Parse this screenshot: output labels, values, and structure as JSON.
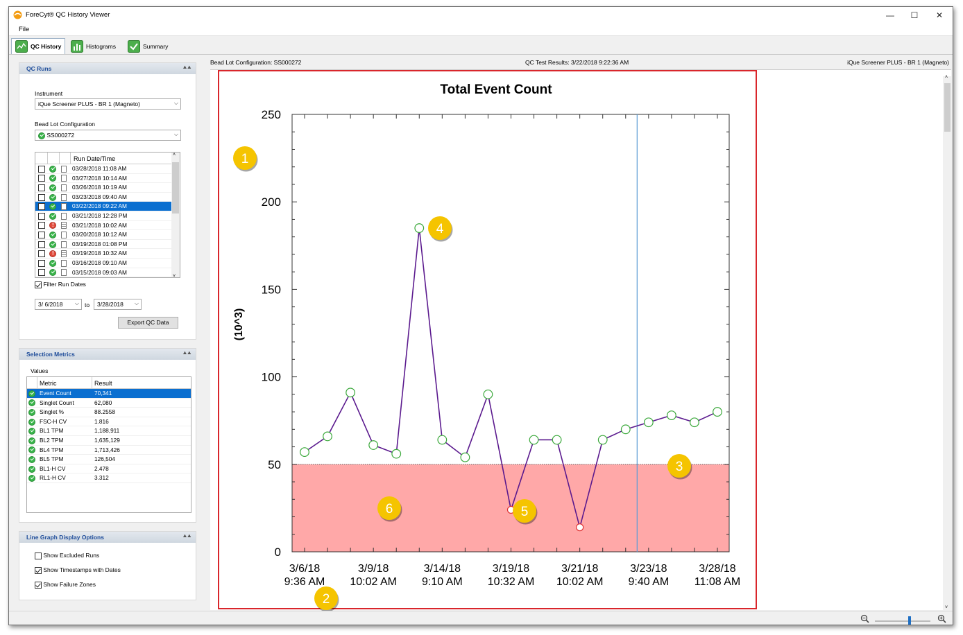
{
  "app": {
    "title": "ForeCyt® QC History Viewer",
    "minimize": "—",
    "maximize": "☐",
    "close": "✕"
  },
  "menu": {
    "file": "File"
  },
  "tabs": [
    {
      "label": "QC History",
      "icon": "qc-history-icon",
      "active": true
    },
    {
      "label": "Histograms",
      "icon": "histogram-icon",
      "active": false
    },
    {
      "label": "Summary",
      "icon": "summary-check-icon",
      "active": false
    }
  ],
  "qc_runs": {
    "header": "QC Runs",
    "instrument_label": "Instrument",
    "instrument_value": "iQue Screener PLUS - BR 1 (Magneto)",
    "bead_lot_label": "Bead Lot Configuration",
    "bead_lot_value": "SS000272",
    "column_header": "Run Date/Time",
    "runs": [
      {
        "date": "03/28/2018 11:08 AM",
        "status": "ok",
        "selected": false
      },
      {
        "date": "03/27/2018 10:14 AM",
        "status": "ok",
        "selected": false
      },
      {
        "date": "03/26/2018 10:19 AM",
        "status": "ok",
        "selected": false
      },
      {
        "date": "03/23/2018 09:40 AM",
        "status": "ok",
        "selected": false
      },
      {
        "date": "03/22/2018 09:22 AM",
        "status": "ok",
        "selected": true
      },
      {
        "date": "03/21/2018 12:28 PM",
        "status": "ok",
        "selected": false
      },
      {
        "date": "03/21/2018 10:02 AM",
        "status": "error",
        "selected": false
      },
      {
        "date": "03/20/2018 10:12 AM",
        "status": "ok",
        "selected": false
      },
      {
        "date": "03/19/2018 01:08 PM",
        "status": "ok",
        "selected": false
      },
      {
        "date": "03/19/2018 10:32 AM",
        "status": "error",
        "selected": false
      },
      {
        "date": "03/16/2018 09:10 AM",
        "status": "ok",
        "selected": false
      },
      {
        "date": "03/15/2018 09:03 AM",
        "status": "ok",
        "selected": false
      }
    ],
    "filter_label": "Filter Run Dates",
    "filter_checked": true,
    "date_from": "3/ 6/2018",
    "date_to_label": "to",
    "date_to": "3/28/2018",
    "export_label": "Export QC Data"
  },
  "selection_metrics": {
    "header": "Selection Metrics",
    "values_label": "Values",
    "col_metric": "Metric",
    "col_result": "Result",
    "rows": [
      {
        "metric": "Event Count",
        "result": "70,341",
        "selected": true
      },
      {
        "metric": "Singlet Count",
        "result": "62,080",
        "selected": false
      },
      {
        "metric": "Singlet %",
        "result": "88.2558",
        "selected": false
      },
      {
        "metric": "FSC-H CV",
        "result": "1.816",
        "selected": false
      },
      {
        "metric": "BL1 TPM",
        "result": "1,188,911",
        "selected": false
      },
      {
        "metric": "BL2 TPM",
        "result": "1,635,129",
        "selected": false
      },
      {
        "metric": "BL4 TPM",
        "result": "1,713,426",
        "selected": false
      },
      {
        "metric": "BL5 TPM",
        "result": "126,504",
        "selected": false
      },
      {
        "metric": "BL1-H CV",
        "result": "2.478",
        "selected": false
      },
      {
        "metric": "RL1-H CV",
        "result": "3.312",
        "selected": false
      }
    ]
  },
  "line_graph_options": {
    "header": "Line Graph Display Options",
    "options": [
      {
        "label": "Show Excluded Runs",
        "checked": false
      },
      {
        "label": "Show Timestamps with Dates",
        "checked": true
      },
      {
        "label": "Show Failure Zones",
        "checked": true
      }
    ]
  },
  "infobar": {
    "bead_lot": "Bead Lot Configuration:  SS000272",
    "test_results": "QC Test Results: 3/22/2018 9:22:36 AM",
    "instrument": "iQue Screener PLUS - BR 1 (Magneto)"
  },
  "callouts": [
    "1",
    "2",
    "3",
    "4",
    "5",
    "6"
  ],
  "colors": {
    "line": "#5b1a8e",
    "failure_zone": "#ffa8a8",
    "point_ok": "#3aa83a",
    "point_fail": "#e03030",
    "highlight_border": "#d9262b",
    "selection_line": "#5b9bd5",
    "callout": "#f5c400"
  },
  "chart_data": {
    "type": "line",
    "title": "Total Event Count",
    "ylabel": "(10^3)",
    "xlabel": "",
    "ylim": [
      0,
      250
    ],
    "yticks": [
      0,
      50,
      100,
      150,
      200,
      250
    ],
    "threshold": 50,
    "failure_zone": [
      0,
      50
    ],
    "selected_index": 14,
    "xtick_labels": [
      {
        "index": 0,
        "line1": "3/6/18",
        "line2": "9:36 AM"
      },
      {
        "index": 3,
        "line1": "3/9/18",
        "line2": "10:02 AM"
      },
      {
        "index": 6,
        "line1": "3/14/18",
        "line2": "9:10 AM"
      },
      {
        "index": 9,
        "line1": "3/19/18",
        "line2": "10:32 AM"
      },
      {
        "index": 12,
        "line1": "3/21/18",
        "line2": "10:02 AM"
      },
      {
        "index": 15,
        "line1": "3/23/18",
        "line2": "9:40 AM"
      },
      {
        "index": 18,
        "line1": "3/28/18",
        "line2": "11:08 AM"
      }
    ],
    "values": [
      57,
      66,
      91,
      61,
      56,
      185,
      64,
      54,
      90,
      24,
      64,
      64,
      14,
      64,
      70,
      74,
      78,
      74,
      80
    ],
    "failed": [
      false,
      false,
      false,
      false,
      false,
      false,
      false,
      false,
      false,
      true,
      false,
      false,
      true,
      false,
      false,
      false,
      false,
      false,
      false
    ],
    "grid": false
  }
}
